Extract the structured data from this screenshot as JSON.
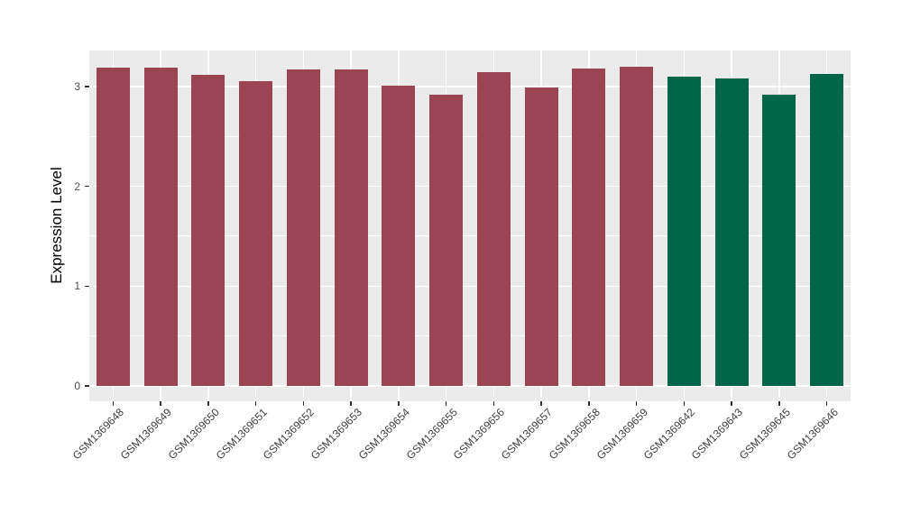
{
  "chart_data": {
    "type": "bar",
    "title": "",
    "xlabel": "",
    "ylabel": "Expression Level",
    "ylim": [
      0,
      3.35
    ],
    "yticks": [
      0,
      1,
      2,
      3
    ],
    "ytick_labels": [
      "0",
      "1",
      "2",
      "3"
    ],
    "yticks_minor": [
      0.5,
      1.5,
      2.5
    ],
    "grid": "on",
    "legend_position": "none",
    "categories": [
      "GSM1369648",
      "GSM1369649",
      "GSM1369650",
      "GSM1369651",
      "GSM1369652",
      "GSM1369653",
      "GSM1369654",
      "GSM1369655",
      "GSM1369656",
      "GSM1369657",
      "GSM1369658",
      "GSM1369659",
      "GSM1369642",
      "GSM1369643",
      "GSM1369645",
      "GSM1369646"
    ],
    "values": [
      3.19,
      3.19,
      3.12,
      3.05,
      3.17,
      3.17,
      3.01,
      2.92,
      3.14,
      2.99,
      3.18,
      3.2,
      3.1,
      3.08,
      2.92,
      3.13
    ],
    "groups": [
      "group1",
      "group1",
      "group1",
      "group1",
      "group1",
      "group1",
      "group1",
      "group1",
      "group1",
      "group1",
      "group1",
      "group1",
      "group2",
      "group2",
      "group2",
      "group2"
    ],
    "group_colors": {
      "group1": "#9B4453",
      "group2": "#006647"
    }
  },
  "style_colors": {
    "panel_background": "#EBEBEB",
    "gridline": "#FFFFFF",
    "tick_mark": "#333333",
    "axis_tick_text": "#4D4D4D",
    "axis_title_text": "#000000",
    "figure_background": "#FFFFFF"
  }
}
